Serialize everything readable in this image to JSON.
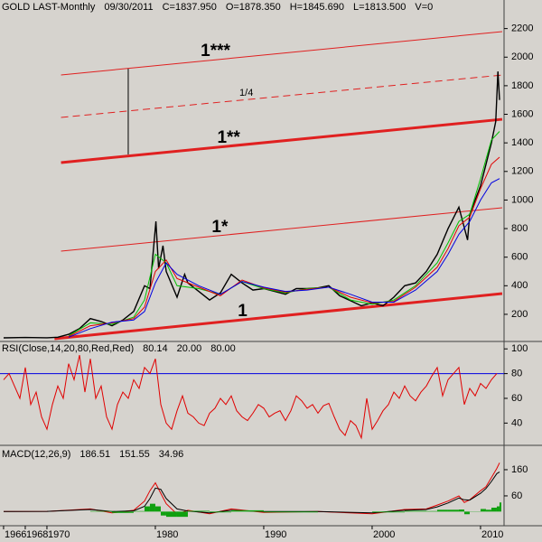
{
  "chart_data": [
    {
      "type": "line",
      "title": "GOLD LAST-Monthly",
      "date": "09/30/2011",
      "quote": [
        "C=1837.950",
        "O=1878.350",
        "H=1845.690",
        "L=1813.500",
        "V=0"
      ],
      "quote_colors": [
        "#10b010",
        "#10b010",
        "#000000",
        "#000000",
        "#000000"
      ],
      "xlim": [
        1965.67,
        2012.17
      ],
      "ylim": [
        10,
        2400
      ],
      "yticks": [
        200,
        400,
        600,
        800,
        1000,
        1200,
        1400,
        1600,
        1800,
        2000,
        2200
      ],
      "series": [
        {
          "color": "#000000",
          "x": [
            1966,
            1968,
            1970,
            1971,
            1972,
            1973,
            1974,
            1975,
            1976,
            1977,
            1978,
            1979,
            1979.5,
            1980.05,
            1980.3,
            1980.7,
            1981,
            1982,
            1982.7,
            1983,
            1984,
            1985,
            1986,
            1987,
            1988,
            1989,
            1990,
            1991,
            1992,
            1993,
            1994,
            1995,
            1996,
            1997,
            1998,
            1999,
            2000,
            2001,
            2002,
            2003,
            2004,
            2005,
            2006,
            2007,
            2008,
            2008.8,
            2009,
            2010,
            2010.5,
            2011,
            2011.4,
            2011.6,
            2011.75
          ],
          "values": [
            35,
            38,
            36,
            40,
            60,
            100,
            170,
            150,
            120,
            160,
            220,
            400,
            380,
            850,
            520,
            680,
            500,
            320,
            480,
            420,
            360,
            300,
            350,
            480,
            420,
            370,
            380,
            360,
            340,
            380,
            380,
            385,
            400,
            330,
            295,
            260,
            280,
            260,
            320,
            400,
            420,
            500,
            620,
            800,
            950,
            720,
            900,
            1100,
            1250,
            1400,
            1550,
            1900,
            1700
          ]
        },
        {
          "color": "#00c000",
          "x": [
            1972,
            1974,
            1976,
            1978,
            1979,
            1980,
            1981,
            1982,
            1984,
            1986,
            1988,
            1990,
            1992,
            1994,
            1996,
            1998,
            2000,
            2002,
            2004,
            2006,
            2007,
            2008,
            2009,
            2010,
            2011,
            2011.75
          ],
          "values": [
            50,
            140,
            130,
            180,
            300,
            620,
            560,
            400,
            380,
            340,
            430,
            380,
            350,
            380,
            390,
            300,
            270,
            300,
            400,
            560,
            700,
            850,
            900,
            1150,
            1420,
            1480
          ]
        },
        {
          "color": "#e00000",
          "x": [
            1972,
            1974,
            1976,
            1978,
            1979,
            1980,
            1981,
            1982,
            1984,
            1986,
            1988,
            1990,
            1992,
            1994,
            1996,
            1998,
            2000,
            2002,
            2004,
            2006,
            2007,
            2008,
            2009,
            2010,
            2011,
            2011.75
          ],
          "values": [
            45,
            120,
            140,
            170,
            250,
            500,
            580,
            450,
            390,
            330,
            440,
            385,
            355,
            375,
            390,
            320,
            280,
            290,
            390,
            530,
            660,
            820,
            880,
            1080,
            1250,
            1300
          ]
        },
        {
          "color": "#0000e0",
          "x": [
            1972,
            1974,
            1976,
            1978,
            1979,
            1980,
            1981,
            1982,
            1984,
            1986,
            1988,
            1990,
            1992,
            1994,
            1996,
            1998,
            2000,
            2002,
            2004,
            2006,
            2007,
            2008,
            2009,
            2010,
            2011,
            2011.75
          ],
          "values": [
            40,
            100,
            145,
            160,
            220,
            420,
            560,
            480,
            400,
            340,
            430,
            390,
            360,
            370,
            390,
            340,
            285,
            285,
            370,
            500,
            620,
            760,
            850,
            1000,
            1120,
            1150
          ]
        }
      ],
      "trendlines": [
        {
          "label": "1",
          "style": "thick",
          "x": [
            1970.7,
            2012.0
          ],
          "y": [
            29,
            345
          ]
        },
        {
          "label": "1*",
          "style": "thin",
          "x": [
            1971.3,
            2012.0
          ],
          "y": [
            642,
            946
          ]
        },
        {
          "label": "1**",
          "style": "thick",
          "x": [
            1971.3,
            2012.0
          ],
          "y": [
            1262,
            1565
          ]
        },
        {
          "label": "1/4",
          "style": "dashed",
          "x": [
            1971.3,
            2012.0
          ],
          "y": [
            1578,
            1875
          ]
        },
        {
          "label": "1***",
          "style": "thin",
          "x": [
            1971.3,
            2012.0
          ],
          "y": [
            1875,
            2179
          ]
        }
      ],
      "trendline_color": "#e02020",
      "markers": [
        {
          "x": [
            1977.5,
            1977.5
          ],
          "y": [
            1919,
            1319
          ]
        }
      ]
    },
    {
      "type": "line",
      "title": "RSI(Close,14,20,80,Red,Red)",
      "xlim": [
        1965.67,
        2012.17
      ],
      "ylim": [
        22,
        106
      ],
      "yticks": [
        40,
        60,
        80,
        100
      ],
      "levels": [
        {
          "value": 20,
          "label": "20.00"
        },
        {
          "value": 80,
          "label": "80.00"
        }
      ],
      "level_color": "#0000e0",
      "series": [
        {
          "color": "#e00000",
          "x": [
            1966,
            1966.5,
            1967,
            1967.5,
            1968,
            1968.5,
            1969,
            1969.5,
            1970,
            1970.5,
            1971,
            1971.5,
            1972,
            1972.5,
            1973,
            1973.5,
            1974,
            1974.5,
            1975,
            1975.5,
            1976,
            1976.5,
            1977,
            1977.5,
            1978,
            1978.5,
            1979,
            1979.5,
            1980,
            1980.5,
            1981,
            1981.5,
            1982,
            1982.5,
            1983,
            1983.5,
            1984,
            1984.5,
            1985,
            1985.5,
            1986,
            1986.5,
            1987,
            1987.5,
            1988,
            1988.5,
            1989,
            1989.5,
            1990,
            1990.5,
            1991,
            1991.5,
            1992,
            1992.5,
            1993,
            1993.5,
            1994,
            1994.5,
            1995,
            1995.5,
            1996,
            1996.5,
            1997,
            1997.5,
            1998,
            1998.5,
            1999,
            1999.5,
            2000,
            2000.5,
            2001,
            2001.5,
            2002,
            2002.5,
            2003,
            2003.5,
            2004,
            2004.5,
            2005,
            2005.5,
            2006,
            2006.5,
            2007,
            2007.5,
            2008,
            2008.5,
            2009,
            2009.5,
            2010,
            2010.5,
            2011,
            2011.5
          ],
          "values": [
            75,
            80,
            70,
            60,
            85,
            55,
            65,
            45,
            35,
            55,
            70,
            60,
            88,
            75,
            95,
            65,
            92,
            60,
            70,
            45,
            35,
            55,
            65,
            60,
            75,
            68,
            85,
            80,
            92,
            55,
            40,
            35,
            50,
            62,
            48,
            45,
            40,
            38,
            48,
            52,
            60,
            55,
            62,
            50,
            45,
            42,
            48,
            55,
            52,
            45,
            48,
            50,
            42,
            50,
            62,
            58,
            52,
            55,
            48,
            54,
            56,
            45,
            35,
            30,
            42,
            38,
            28,
            60,
            35,
            42,
            50,
            55,
            65,
            60,
            70,
            62,
            58,
            65,
            70,
            78,
            85,
            62,
            75,
            80,
            85,
            55,
            68,
            62,
            72,
            68,
            75,
            80.14
          ]
        }
      ]
    },
    {
      "type": "line",
      "title": "MACD(12,26,9)",
      "xlim": [
        1965.67,
        2012.17
      ],
      "ylim": [
        -54,
        253
      ],
      "yticks": [
        60,
        160
      ],
      "xticks": [
        1966,
        1968,
        1970,
        1980,
        1990,
        2000,
        2010
      ],
      "series": [
        {
          "color": "#e00000",
          "style": "line",
          "x": [
            1966,
            1970,
            1974,
            1976,
            1978,
            1979,
            1979.5,
            1980,
            1980.5,
            1981,
            1982,
            1983,
            1985,
            1987,
            1990,
            1995,
            2000,
            2003,
            2005,
            2006,
            2007,
            2008,
            2008.5,
            2009,
            2010,
            2010.5,
            2011,
            2011.5,
            2011.75
          ],
          "values": [
            0,
            1,
            10,
            -5,
            5,
            40,
            80,
            110,
            70,
            30,
            -10,
            5,
            -8,
            10,
            -3,
            0,
            -8,
            8,
            10,
            25,
            40,
            60,
            35,
            45,
            80,
            95,
            130,
            165,
            186.51
          ]
        },
        {
          "color": "#000000",
          "style": "line",
          "x": [
            1966,
            1970,
            1974,
            1976,
            1978,
            1979,
            1979.5,
            1980,
            1980.5,
            1981,
            1982,
            1983,
            1985,
            1987,
            1990,
            1995,
            2000,
            2003,
            2005,
            2006,
            2007,
            2008,
            2008.5,
            2009,
            2010,
            2010.5,
            2011,
            2011.5,
            2011.75
          ],
          "values": [
            0,
            1,
            8,
            0,
            3,
            20,
            50,
            90,
            85,
            50,
            10,
            2,
            -5,
            5,
            0,
            0,
            -5,
            5,
            8,
            18,
            33,
            52,
            45,
            44,
            70,
            88,
            115,
            145,
            151.55
          ]
        },
        {
          "color": "#10a010",
          "style": "bar",
          "x": [
            1966,
            1970,
            1974,
            1976,
            1978,
            1979,
            1979.5,
            1980,
            1980.5,
            1981,
            1982,
            1983,
            1985,
            1987,
            1990,
            1995,
            2000,
            2003,
            2005,
            2006,
            2007,
            2008,
            2008.5,
            2009,
            2010,
            2010.5,
            2011,
            2011.5,
            2011.75
          ],
          "values": [
            0,
            0,
            2,
            -5,
            2,
            20,
            30,
            20,
            -15,
            -20,
            -20,
            3,
            -3,
            5,
            -3,
            0,
            -3,
            3,
            2,
            7,
            7,
            8,
            -10,
            1,
            10,
            7,
            15,
            20,
            34.96
          ]
        }
      ]
    }
  ]
}
